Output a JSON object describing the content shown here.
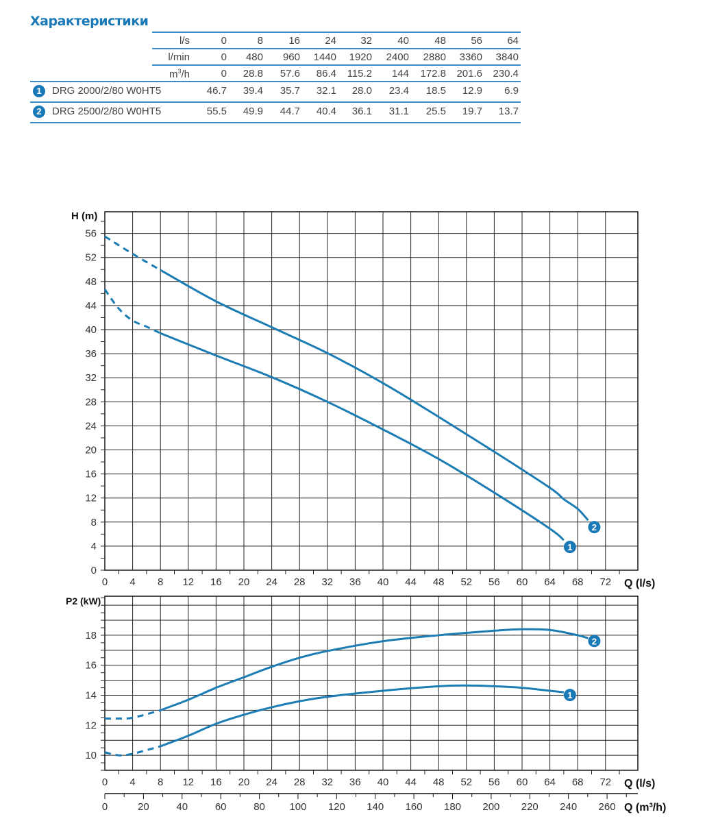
{
  "title": "Характеристики",
  "table": {
    "unit_rows": [
      {
        "unit": "l/s",
        "values": [
          "0",
          "8",
          "16",
          "24",
          "32",
          "40",
          "48",
          "56",
          "64"
        ]
      },
      {
        "unit": "l/min",
        "values": [
          "0",
          "480",
          "960",
          "1440",
          "1920",
          "2400",
          "2880",
          "3360",
          "3840"
        ]
      },
      {
        "unit": "m3/h",
        "values": [
          "0",
          "28.8",
          "57.6",
          "86.4",
          "115.2",
          "144",
          "172.8",
          "201.6",
          "230.4"
        ]
      }
    ],
    "models": [
      {
        "badge": "1",
        "name": "DRG 2000/2/80 W0HT5",
        "values": [
          "46.7",
          "39.4",
          "35.7",
          "32.1",
          "28.0",
          "23.4",
          "18.5",
          "12.9",
          "6.9"
        ]
      },
      {
        "badge": "2",
        "name": "DRG 2500/2/80 W0HT5",
        "values": [
          "55.5",
          "49.9",
          "44.7",
          "40.4",
          "36.1",
          "31.1",
          "25.5",
          "19.7",
          "13.7"
        ]
      }
    ]
  },
  "colors": {
    "curve": "#1b7db3",
    "accent": "#1a7ab8"
  },
  "chart_data": [
    {
      "type": "line",
      "title": "",
      "ylabel": "H (m)",
      "xlabel": "Q (l/s)",
      "xlim": [
        0,
        76
      ],
      "ylim": [
        0,
        60
      ],
      "xticks": [
        0,
        4,
        8,
        12,
        16,
        20,
        24,
        28,
        32,
        36,
        40,
        44,
        48,
        52,
        56,
        60,
        64,
        68,
        72
      ],
      "yticks": [
        0,
        4,
        8,
        12,
        16,
        20,
        24,
        28,
        32,
        36,
        40,
        44,
        48,
        52,
        56
      ],
      "dashed_until_x": 8,
      "series": [
        {
          "name": "1",
          "x": [
            0,
            2,
            4,
            6,
            8,
            16,
            24,
            32,
            40,
            48,
            56,
            64,
            66
          ],
          "y": [
            46.7,
            43.5,
            41.5,
            40.5,
            39.4,
            35.7,
            32.1,
            28.0,
            23.4,
            18.5,
            12.9,
            6.9,
            5.0
          ]
        },
        {
          "name": "2",
          "x": [
            0,
            4,
            8,
            16,
            24,
            32,
            40,
            48,
            56,
            64,
            66,
            68,
            69.5
          ],
          "y": [
            55.5,
            52.6,
            49.9,
            44.7,
            40.4,
            36.1,
            31.1,
            25.5,
            19.7,
            13.7,
            11.8,
            10.2,
            8.3
          ]
        }
      ]
    },
    {
      "type": "line",
      "ylabel": "P2 (kW)",
      "xlabel": "Q (l/s)",
      "xlabel2": "Q (m³/h)",
      "xlim": [
        0,
        76
      ],
      "ylim": [
        9,
        20.6
      ],
      "xticks": [
        0,
        4,
        8,
        12,
        16,
        20,
        24,
        28,
        32,
        36,
        40,
        44,
        48,
        52,
        56,
        60,
        64,
        68,
        72
      ],
      "yticks": [
        10,
        12,
        14,
        16,
        18
      ],
      "x2ticks": [
        0,
        20,
        40,
        60,
        80,
        100,
        120,
        140,
        160,
        180,
        200,
        220,
        240,
        260
      ],
      "dashed_until_x": 8,
      "series": [
        {
          "name": "1",
          "x": [
            0,
            2,
            4,
            8,
            12,
            16,
            20,
            24,
            28,
            32,
            40,
            48,
            52,
            56,
            60,
            64,
            66
          ],
          "y": [
            10.2,
            10.0,
            10.1,
            10.6,
            11.3,
            12.1,
            12.7,
            13.2,
            13.6,
            13.9,
            14.3,
            14.6,
            14.65,
            14.6,
            14.5,
            14.3,
            14.2
          ]
        },
        {
          "name": "2",
          "x": [
            0,
            2,
            4,
            8,
            12,
            16,
            20,
            24,
            28,
            32,
            40,
            48,
            56,
            60,
            64,
            68,
            69.5
          ],
          "y": [
            12.45,
            12.45,
            12.5,
            13.0,
            13.7,
            14.5,
            15.2,
            15.9,
            16.5,
            16.95,
            17.6,
            18.0,
            18.3,
            18.4,
            18.35,
            18.0,
            17.8
          ]
        }
      ]
    }
  ]
}
